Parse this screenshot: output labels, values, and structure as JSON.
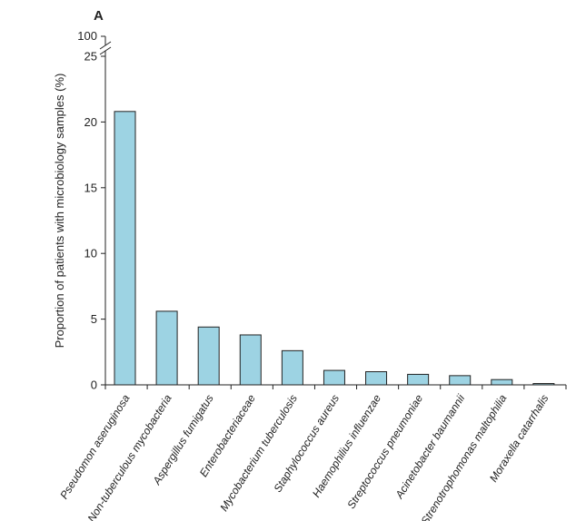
{
  "chart_data": {
    "type": "bar",
    "panel_label": "A",
    "ylabel": "Proportion of patients with microbiology samples (%)",
    "xlabel": "",
    "ylim": [
      0,
      25
    ],
    "axis_break_top_label": "100",
    "yticks": [
      0,
      5,
      10,
      15,
      20,
      25
    ],
    "categories": [
      "Pseudomon aseruginosa",
      "Non-tuberculous mycobacteria",
      "Aspergillus fumigatus",
      "Enterobacteriaceae",
      "Mycobacterium tuberculosis",
      "Staphylococcus aureus",
      "Haemophilius influenzae",
      "Streptococcus pneumoniae",
      "Acinetobacter baumannii",
      "Strenotrophomonas maltophilia",
      "Moraxella catarrhalis"
    ],
    "values": [
      20.8,
      5.6,
      4.4,
      3.8,
      2.6,
      1.1,
      1.0,
      0.8,
      0.7,
      0.4,
      0.1
    ],
    "bar_color": "#9dd3e3",
    "grid": false
  }
}
